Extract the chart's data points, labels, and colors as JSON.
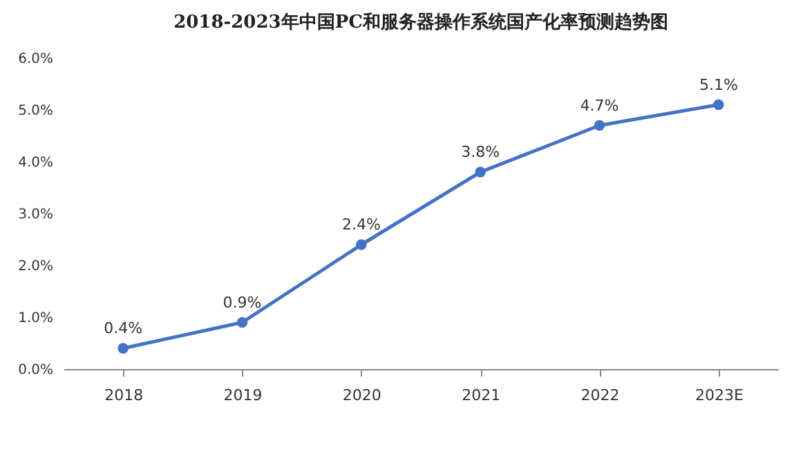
{
  "chart_data": {
    "type": "line",
    "title": "2018-2023年中国PC和服务器操作系统国产化率预测趋势图",
    "categories": [
      "2018",
      "2019",
      "2020",
      "2021",
      "2022",
      "2023E"
    ],
    "series": [
      {
        "color": "#4472c4",
        "values": [
          0.4,
          0.9,
          2.4,
          3.8,
          4.7,
          5.1
        ]
      }
    ],
    "value_labels": [
      "0.4%",
      "0.9%",
      "2.4%",
      "3.8%",
      "4.7%",
      "5.1%"
    ],
    "ylim": [
      0,
      6
    ],
    "yticks": [
      {
        "value": 0,
        "label": "0.0%"
      },
      {
        "value": 1,
        "label": "1.0%"
      },
      {
        "value": 2,
        "label": "2.0%"
      },
      {
        "value": 3,
        "label": "3.0%"
      },
      {
        "value": 4,
        "label": "4.0%"
      },
      {
        "value": 5,
        "label": "5.0%"
      },
      {
        "value": 6,
        "label": "6.0%"
      }
    ],
    "marker": "circle",
    "line_style": "solid"
  }
}
